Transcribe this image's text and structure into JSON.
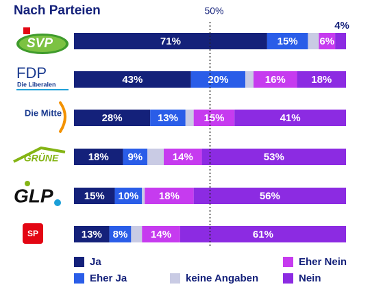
{
  "chart_data": {
    "type": "stacked_bar_horizontal",
    "title": "Nach Parteien",
    "categories": [
      "SVP",
      "FDP",
      "Die Mitte",
      "GRÜNE",
      "GLP",
      "SP"
    ],
    "category_sublabels": [
      null,
      "Die Liberalen",
      null,
      null,
      null,
      null
    ],
    "xlim": [
      0,
      100
    ],
    "reference_line": {
      "value": 50,
      "label": "50%"
    },
    "series": [
      {
        "name": "Ja",
        "color": "#14217a",
        "values": [
          71,
          43,
          28,
          18,
          15,
          13
        ],
        "value_labels": [
          "71%",
          "43%",
          "28%",
          "18%",
          "15%",
          "13%"
        ]
      },
      {
        "name": "Eher Ja",
        "color": "#2a5de8",
        "values": [
          15,
          20,
          13,
          9,
          10,
          8
        ],
        "value_labels": [
          "15%",
          "20%",
          "13%",
          "9%",
          "10%",
          "8%"
        ]
      },
      {
        "name": "keine Angaben",
        "color": "#c9cbe4",
        "values": [
          4,
          3,
          3,
          6,
          1,
          4
        ],
        "value_labels": [
          null,
          null,
          null,
          null,
          null,
          null
        ]
      },
      {
        "name": "Eher Nein",
        "color": "#c63bef",
        "values": [
          6,
          16,
          15,
          14,
          18,
          14
        ],
        "value_labels": [
          "6%",
          "16%",
          "15%",
          "14%",
          "18%",
          "14%"
        ]
      },
      {
        "name": "Nein",
        "color": "#8c2be2",
        "values": [
          4,
          18,
          41,
          53,
          56,
          61
        ],
        "value_labels": [
          "4%",
          "18%",
          "41%",
          "53%",
          "56%",
          "61%"
        ]
      }
    ]
  }
}
